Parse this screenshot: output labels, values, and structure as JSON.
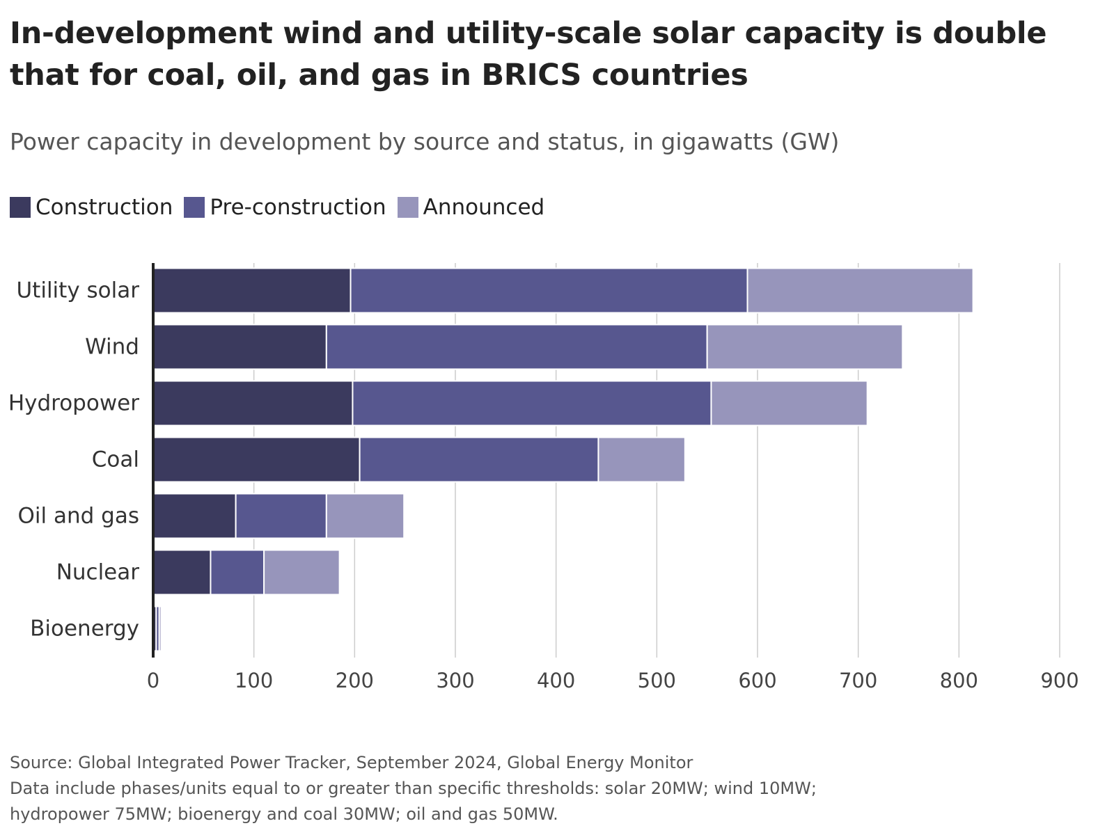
{
  "title_line1": "In-development wind and utility-scale solar capacity is double",
  "title_line2": "that for coal, oil, and gas in BRICS countries",
  "subtitle": "Power capacity in development by source and status, in gigawatts (GW)",
  "source": "Source: Global Integrated Power Tracker, September 2024, Global Energy Monitor",
  "note_line1": "Data include phases/units equal to or greater than specific thresholds: solar 20MW; wind 10MW;",
  "note_line2": "hydropower 75MW; bioenergy and coal 30MW; oil and gas 50MW.",
  "colors": {
    "construction": "#3b3a5e",
    "pre_construction": "#57578f",
    "announced": "#9795bb",
    "grid": "#cccccc",
    "axis": "#222222"
  },
  "chart_data": {
    "type": "bar",
    "orientation": "horizontal",
    "stacked": true,
    "categories": [
      "Utility solar",
      "Wind",
      "Hydropower",
      "Coal",
      "Oil and gas",
      "Nuclear",
      "Bioenergy"
    ],
    "series": [
      {
        "name": "Construction",
        "values": [
          196,
          172,
          198,
          205,
          82,
          57,
          3
        ]
      },
      {
        "name": "Pre-construction",
        "values": [
          394,
          378,
          356,
          237,
          90,
          53,
          3
        ]
      },
      {
        "name": "Announced",
        "values": [
          224,
          194,
          155,
          86,
          77,
          75,
          2
        ]
      }
    ],
    "xlim": [
      0,
      900
    ],
    "xticks": [
      0,
      100,
      200,
      300,
      400,
      500,
      600,
      700,
      800,
      900
    ],
    "grid": true,
    "legend_position": "top-left"
  }
}
